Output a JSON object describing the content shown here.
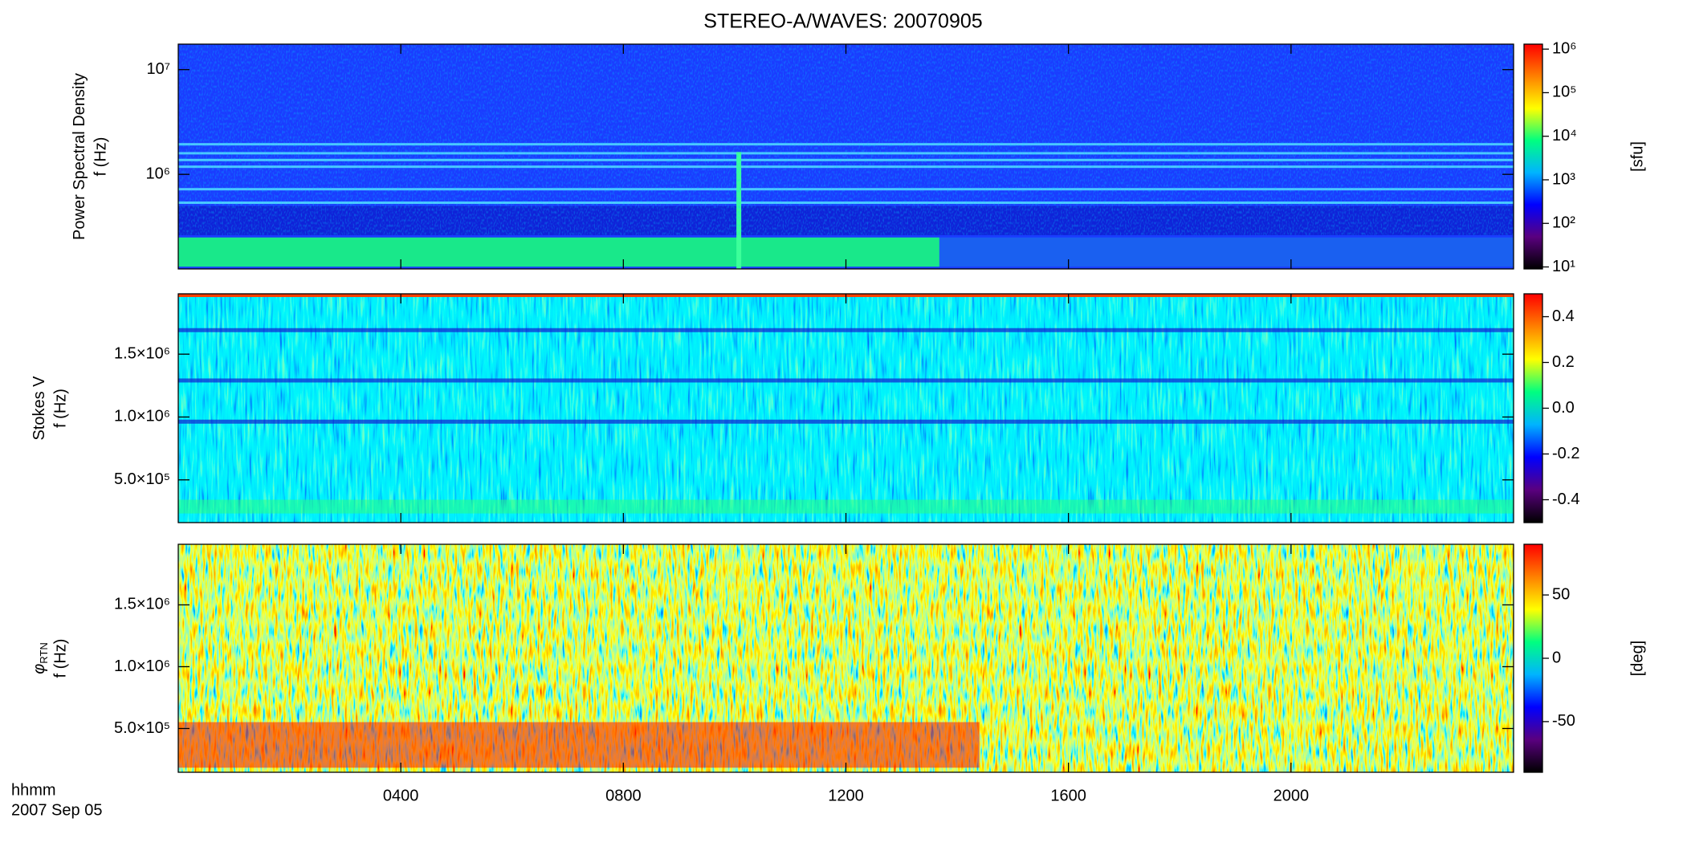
{
  "title": "STEREO-A/WAVES: 20070905",
  "x_axis": {
    "label": "hhmm",
    "date": "2007 Sep 05",
    "xlim": [
      0,
      24
    ],
    "xticks": [
      {
        "value": 4,
        "label": "0400"
      },
      {
        "value": 8,
        "label": "0800"
      },
      {
        "value": 12,
        "label": "1200"
      },
      {
        "value": 16,
        "label": "1600"
      },
      {
        "value": 20,
        "label": "2000"
      }
    ]
  },
  "colormap": [
    "#000000",
    "#5a007f",
    "#0000ff",
    "#00b4ff",
    "#00ff80",
    "#ffff00",
    "#ff8000",
    "#ff0000"
  ],
  "chart_data": [
    {
      "type": "spectrogram",
      "ylabel": "Power Spectral Density",
      "ylabel2": "f (Hz)",
      "ylog": true,
      "ylim": [
        125000,
        17500000
      ],
      "yticks": [
        {
          "value": 1000000,
          "label": "10⁶"
        },
        {
          "value": 10000000,
          "label": "10⁷"
        }
      ],
      "colorbar": {
        "label": "[sfu]",
        "log": true,
        "lim": [
          9,
          1300000
        ],
        "ticks": [
          {
            "value": 10,
            "label": "10¹"
          },
          {
            "value": 100,
            "label": "10²"
          },
          {
            "value": 1000,
            "label": "10³"
          },
          {
            "value": 10000,
            "label": "10⁴"
          },
          {
            "value": 100000,
            "label": "10⁵"
          },
          {
            "value": 1000000,
            "label": "10⁶"
          }
        ]
      }
    },
    {
      "type": "spectrogram",
      "ylabel": "Stokes V",
      "ylabel2": "f (Hz)",
      "ylog": false,
      "ylim": [
        160000,
        1980000
      ],
      "yticks": [
        {
          "value": 500000,
          "label": "5.0×10⁵"
        },
        {
          "value": 1000000,
          "label": "1.0×10⁶"
        },
        {
          "value": 1500000,
          "label": "1.5×10⁶"
        }
      ],
      "colorbar": {
        "log": false,
        "lim": [
          -0.5,
          0.5
        ],
        "ticks": [
          {
            "value": -0.4,
            "label": "-0.4"
          },
          {
            "value": -0.2,
            "label": "-0.2"
          },
          {
            "value": 0,
            "label": "0.0"
          },
          {
            "value": 0.2,
            "label": "0.2"
          },
          {
            "value": 0.4,
            "label": "0.4"
          }
        ]
      }
    },
    {
      "type": "spectrogram",
      "ylabel": "φ",
      "ylabel_sub": "RTN",
      "ylabel2": "f (Hz)",
      "ylog": false,
      "ylim": [
        146000,
        1990000
      ],
      "yticks": [
        {
          "value": 500000,
          "label": "5.0×10⁵"
        },
        {
          "value": 1000000,
          "label": "1.0×10⁶"
        },
        {
          "value": 1500000,
          "label": "1.5×10⁶"
        }
      ],
      "colorbar": {
        "label": "[deg]",
        "log": false,
        "lim": [
          -90,
          90
        ],
        "ticks": [
          -50,
          0,
          50
        ]
      }
    }
  ]
}
